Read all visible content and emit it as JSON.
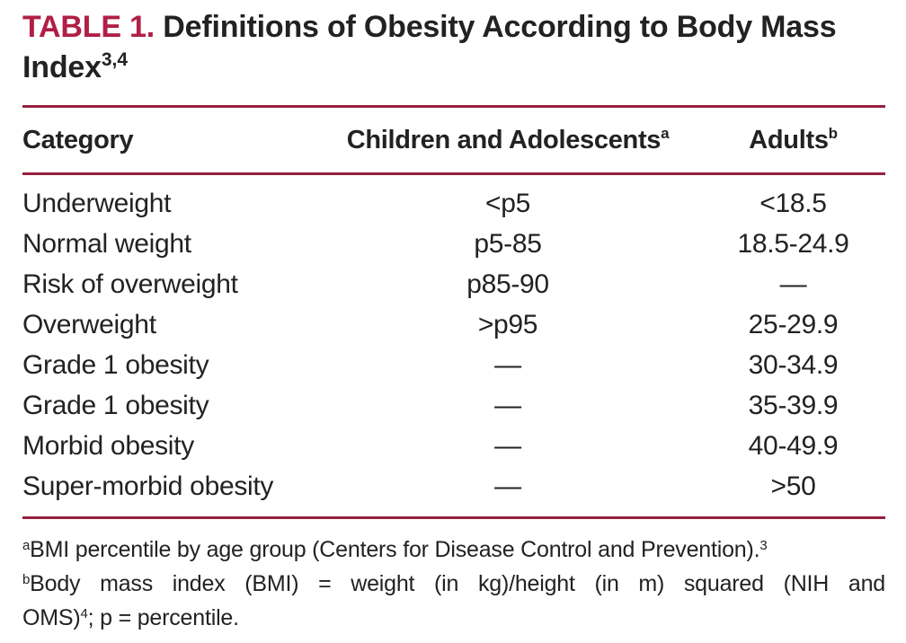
{
  "title": {
    "label": "TABLE 1.",
    "text": "Definitions of Obesity According to Body Mass Index",
    "reference_sup": "3,4"
  },
  "table": {
    "columns": [
      {
        "label": "Category",
        "sup": ""
      },
      {
        "label": "Children and Adolescents",
        "sup": "a"
      },
      {
        "label": "Adults",
        "sup": "b"
      }
    ],
    "rows": [
      {
        "category": "Underweight",
        "children": "<p5",
        "adults": "<18.5"
      },
      {
        "category": "Normal weight",
        "children": "p5-85",
        "adults": "18.5-24.9"
      },
      {
        "category": "Risk of overweight",
        "children": "p85-90",
        "adults": "—"
      },
      {
        "category": "Overweight",
        "children": ">p95",
        "adults": "25-29.9"
      },
      {
        "category": "Grade 1 obesity",
        "children": "—",
        "adults": "30-34.9"
      },
      {
        "category": "Grade 1 obesity",
        "children": "—",
        "adults": "35-39.9"
      },
      {
        "category": "Morbid obesity",
        "children": "—",
        "adults": "40-49.9"
      },
      {
        "category": "Super-morbid obesity",
        "children": "—",
        "adults": ">50"
      }
    ]
  },
  "footnotes": {
    "a": {
      "marker": "a",
      "text": "BMI percentile by age group (Centers for Disease Control and Prevention).",
      "reference_sup": "3"
    },
    "b": {
      "marker": "b",
      "line1": "Body mass index (BMI) = weight (in kg)/height (in m) squared (NIH and",
      "line2_before_sup": "OMS)",
      "reference_sup": "4",
      "line2_after_sup": "; p = percentile."
    }
  },
  "colors": {
    "accent_red": "#B01F45",
    "rule_maroon": "#97213F",
    "text_dark": "#242122",
    "background": "#FFFFFF"
  }
}
